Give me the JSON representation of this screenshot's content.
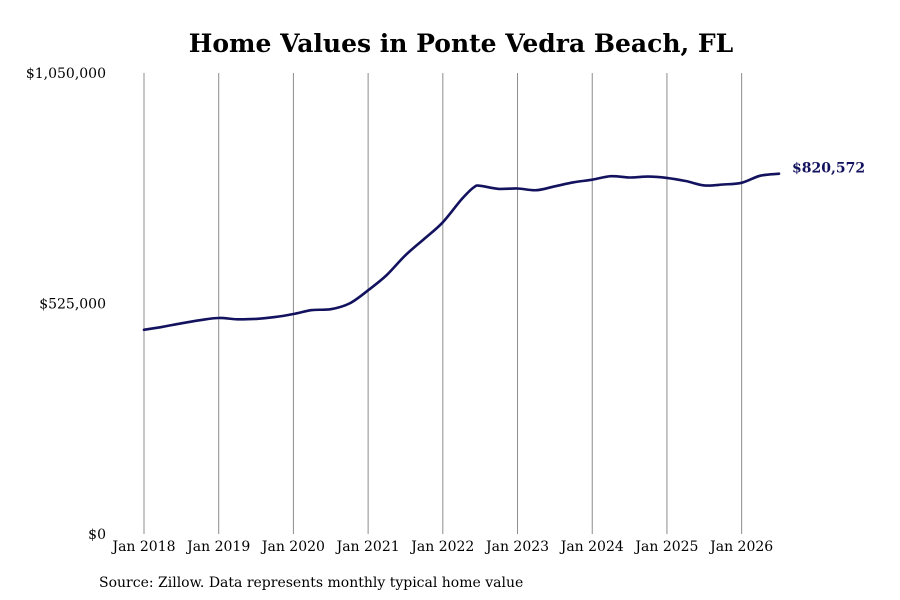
{
  "chart_data": {
    "type": "line",
    "title": "Home Values in Ponte Vedra Beach, FL",
    "source_note": "Source: Zillow. Data represents monthly typical home value",
    "xlabel": "",
    "ylabel": "",
    "y_ticks": [
      {
        "value": 0,
        "label": "$0"
      },
      {
        "value": 525000,
        "label": "$525,000"
      },
      {
        "value": 1050000,
        "label": "$1,050,000"
      }
    ],
    "x_ticks": [
      {
        "value": "2018-01",
        "label": "Jan 2018"
      },
      {
        "value": "2019-01",
        "label": "Jan 2019"
      },
      {
        "value": "2020-01",
        "label": "Jan 2020"
      },
      {
        "value": "2021-01",
        "label": "Jan 2021"
      },
      {
        "value": "2022-01",
        "label": "Jan 2022"
      },
      {
        "value": "2023-01",
        "label": "Jan 2023"
      },
      {
        "value": "2024-01",
        "label": "Jan 2024"
      },
      {
        "value": "2025-01",
        "label": "Jan 2025"
      },
      {
        "value": "2026-01",
        "label": "Jan 2026"
      }
    ],
    "xlim": [
      "2018-01",
      "2026-07"
    ],
    "ylim": [
      0,
      1050000
    ],
    "grid": {
      "vertical": true,
      "horizontal": false
    },
    "line_color": "#12125e",
    "end_label": "$820,572",
    "series": [
      {
        "x": [
          "2018-01",
          "2018-04",
          "2018-07",
          "2018-10",
          "2019-01",
          "2019-04",
          "2019-07",
          "2019-10",
          "2020-01",
          "2020-04",
          "2020-07",
          "2020-10",
          "2021-01",
          "2021-04",
          "2021-07",
          "2021-10",
          "2022-01",
          "2022-04",
          "2022-06",
          "2022-07",
          "2022-10",
          "2023-01",
          "2023-04",
          "2023-07",
          "2023-10",
          "2024-01",
          "2024-04",
          "2024-07",
          "2024-10",
          "2025-01",
          "2025-04",
          "2025-07",
          "2025-10",
          "2026-01",
          "2026-04",
          "2026-07"
        ],
        "y": [
          465000,
          472000,
          480000,
          487000,
          492000,
          489000,
          490000,
          494000,
          501000,
          510000,
          512000,
          525000,
          555000,
          590000,
          635000,
          672000,
          710000,
          762000,
          790000,
          793000,
          786000,
          787000,
          783000,
          792000,
          801000,
          807000,
          815000,
          812000,
          814000,
          811000,
          804000,
          794000,
          796000,
          800000,
          816000,
          820572
        ]
      }
    ]
  }
}
